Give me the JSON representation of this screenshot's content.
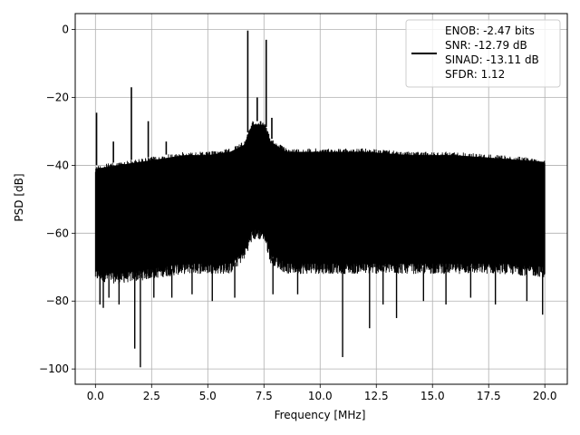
{
  "chart_data": {
    "type": "line",
    "title": "",
    "xlabel": "Frequency [MHz]",
    "ylabel": "PSD [dB]",
    "xlim": [
      -0.9,
      21.0
    ],
    "ylim": [
      -104.5,
      4.7
    ],
    "grid": true,
    "legend_position": "top-right",
    "x_ticks": [
      0.0,
      2.5,
      5.0,
      7.5,
      10.0,
      12.5,
      15.0,
      17.5,
      20.0
    ],
    "x_tick_labels": [
      "0.0",
      "2.5",
      "5.0",
      "7.5",
      "10.0",
      "12.5",
      "15.0",
      "17.5",
      "20.0"
    ],
    "y_ticks": [
      0,
      -20,
      -40,
      -60,
      -80,
      -100
    ],
    "y_tick_labels": [
      "0",
      "−20",
      "−40",
      "−60",
      "−80",
      "−100"
    ],
    "series": [
      {
        "name": "ENOB: -2.47 bits\nSNR: -12.79 dB\nSINAD: -13.11 dB\nSFDR: 1.12",
        "color": "#000000",
        "x_range": [
          0.0,
          20.0
        ],
        "noise_band_top": [
          [
            0.0,
            -40
          ],
          [
            1.0,
            -39
          ],
          [
            2.0,
            -38
          ],
          [
            3.0,
            -37
          ],
          [
            4.0,
            -36
          ],
          [
            5.0,
            -36
          ],
          [
            6.0,
            -35
          ],
          [
            6.6,
            -33
          ],
          [
            7.0,
            -27
          ],
          [
            7.5,
            -27
          ],
          [
            7.8,
            -32
          ],
          [
            8.5,
            -35
          ],
          [
            10.0,
            -35
          ],
          [
            12.0,
            -35
          ],
          [
            14.0,
            -36
          ],
          [
            16.0,
            -36
          ],
          [
            18.0,
            -37
          ],
          [
            20.0,
            -38
          ]
        ],
        "noise_band_bottom": [
          [
            0.0,
            -72
          ],
          [
            1.0,
            -73
          ],
          [
            2.0,
            -72
          ],
          [
            3.0,
            -71
          ],
          [
            4.0,
            -70
          ],
          [
            5.0,
            -70
          ],
          [
            6.0,
            -70
          ],
          [
            6.6,
            -66
          ],
          [
            7.0,
            -60
          ],
          [
            7.5,
            -60
          ],
          [
            7.8,
            -67
          ],
          [
            8.5,
            -70
          ],
          [
            10.0,
            -70
          ],
          [
            12.0,
            -70
          ],
          [
            14.0,
            -70
          ],
          [
            16.0,
            -70
          ],
          [
            18.0,
            -70
          ],
          [
            20.0,
            -71
          ]
        ],
        "peaks": [
          [
            0.05,
            -24.5
          ],
          [
            0.8,
            -33
          ],
          [
            1.6,
            -17
          ],
          [
            2.35,
            -27
          ],
          [
            3.15,
            -33
          ],
          [
            6.78,
            -0.3
          ],
          [
            7.2,
            -20
          ],
          [
            7.35,
            -28
          ],
          [
            7.6,
            -3
          ],
          [
            7.85,
            -26
          ]
        ],
        "dips": [
          [
            0.2,
            -81
          ],
          [
            0.35,
            -82
          ],
          [
            0.6,
            -79
          ],
          [
            1.05,
            -81
          ],
          [
            1.75,
            -94
          ],
          [
            2.0,
            -99.5
          ],
          [
            2.6,
            -79
          ],
          [
            3.4,
            -79
          ],
          [
            4.3,
            -78
          ],
          [
            5.2,
            -80
          ],
          [
            6.2,
            -79
          ],
          [
            7.9,
            -78
          ],
          [
            9.0,
            -78
          ],
          [
            11.0,
            -96.5
          ],
          [
            12.2,
            -88
          ],
          [
            12.8,
            -81
          ],
          [
            13.4,
            -85
          ],
          [
            14.6,
            -80
          ],
          [
            15.6,
            -81
          ],
          [
            16.7,
            -79
          ],
          [
            17.8,
            -81
          ],
          [
            19.2,
            -80
          ],
          [
            19.9,
            -84
          ]
        ]
      }
    ]
  }
}
